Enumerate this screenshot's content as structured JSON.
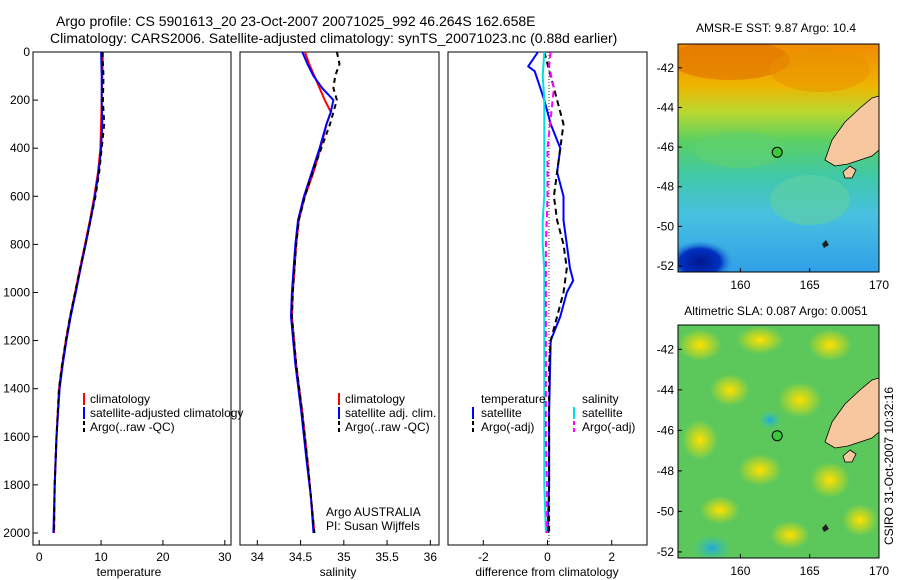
{
  "header": {
    "line1": "Argo profile: CS 5901613_20 23-Oct-2007 20071025_992 46.264S 162.658E",
    "line2": "Climatology: CARS2006. Satellite-adjusted climatology: synTS_20071023.nc (0.88d earlier)"
  },
  "credit_lines": [
    "Argo AUSTRALIA",
    "PI: Susan Wijffels"
  ],
  "side_stamp": "CSIRO 31-Oct-2007 10:32:16",
  "colors": {
    "climatology": "#ff0000",
    "satellite": "#0000ff",
    "argo": "#000000",
    "salinity_satellite": "#00e0e0",
    "salinity_argo": "#ff00ff",
    "land": "#f7c7a0"
  },
  "chart_data": [
    {
      "id": "temperature",
      "type": "line",
      "xlabel": "temperature",
      "xlim": [
        -1,
        31
      ],
      "ylim": [
        2050,
        0
      ],
      "xticks": [
        "0",
        "10",
        "20",
        "30"
      ],
      "yticks": [
        "0",
        "200",
        "400",
        "600",
        "800",
        "1000",
        "1200",
        "1400",
        "1600",
        "1800",
        "2000"
      ],
      "legend": [
        "climatology",
        "satellite-adjusted climatology",
        "Argo(..raw -QC)"
      ],
      "series": [
        {
          "name": "climatology",
          "color": "#ff0000",
          "dash": "",
          "x": [
            10.3,
            10.2,
            10.1,
            10.0,
            9.9,
            9.5,
            8.9,
            8.2,
            7.4,
            6.6,
            5.8,
            5.0,
            4.3,
            3.7,
            3.2,
            2.8,
            2.5,
            2.4
          ],
          "y": [
            0,
            100,
            200,
            300,
            400,
            500,
            600,
            700,
            800,
            900,
            1000,
            1100,
            1200,
            1300,
            1400,
            1600,
            1800,
            2000
          ]
        },
        {
          "name": "satellite-adjusted climatology",
          "color": "#0000ff",
          "dash": "",
          "x": [
            10.0,
            10.1,
            10.1,
            10.2,
            10.0,
            9.6,
            9.0,
            8.3,
            7.5,
            6.7,
            5.9,
            5.1,
            4.4,
            3.8,
            3.3,
            2.8,
            2.5,
            2.3
          ],
          "y": [
            0,
            100,
            200,
            300,
            400,
            500,
            600,
            700,
            800,
            900,
            1000,
            1100,
            1200,
            1300,
            1400,
            1600,
            1800,
            2000
          ]
        },
        {
          "name": "Argo(..raw -QC)",
          "color": "#000000",
          "dash": "5,4",
          "x": [
            10.2,
            10.4,
            10.3,
            10.5,
            10.1,
            9.7,
            9.1,
            8.3,
            7.5,
            6.6,
            5.8,
            5.0,
            4.3,
            3.7,
            3.2,
            2.8,
            2.5,
            2.4
          ],
          "y": [
            0,
            100,
            200,
            300,
            400,
            500,
            600,
            700,
            800,
            900,
            1000,
            1100,
            1200,
            1300,
            1400,
            1600,
            1800,
            2000
          ]
        }
      ]
    },
    {
      "id": "salinity",
      "type": "line",
      "xlabel": "salinity",
      "xlim": [
        33.8,
        36.1
      ],
      "ylim": [
        2050,
        0
      ],
      "xticks": [
        "34",
        "34.5",
        "35",
        "35.5",
        "36"
      ],
      "yticks": [],
      "legend": [
        "climatology",
        "satellite adj. clim.",
        "Argo(..raw -QC)"
      ],
      "series": [
        {
          "name": "climatology",
          "color": "#ff0000",
          "dash": "",
          "x": [
            34.55,
            34.6,
            34.66,
            34.72,
            34.78,
            34.85,
            34.8,
            34.73,
            34.65,
            34.55,
            34.48,
            34.45,
            34.43,
            34.41,
            34.4,
            34.45,
            34.52,
            34.58,
            34.62,
            34.66
          ],
          "y": [
            0,
            50,
            100,
            150,
            200,
            250,
            300,
            400,
            500,
            600,
            700,
            800,
            900,
            1000,
            1100,
            1300,
            1500,
            1700,
            1850,
            2000
          ]
        },
        {
          "name": "satellite adj. clim.",
          "color": "#0000ff",
          "dash": "",
          "x": [
            34.52,
            34.58,
            34.65,
            34.75,
            34.88,
            34.85,
            34.8,
            34.72,
            34.63,
            34.54,
            34.47,
            34.44,
            34.42,
            34.4,
            34.39,
            34.44,
            34.51,
            34.57,
            34.62,
            34.65
          ],
          "y": [
            0,
            50,
            100,
            150,
            200,
            250,
            300,
            400,
            500,
            600,
            700,
            800,
            900,
            1000,
            1100,
            1300,
            1500,
            1700,
            1850,
            2000
          ]
        },
        {
          "name": "Argo(..raw -QC)",
          "color": "#000000",
          "dash": "5,4",
          "x": [
            34.92,
            34.95,
            34.9,
            34.88,
            34.92,
            34.88,
            34.84,
            34.74,
            34.64,
            34.55,
            34.48,
            34.45,
            34.43,
            34.41,
            34.4,
            34.45,
            34.52,
            34.58,
            34.62,
            34.66
          ],
          "y": [
            0,
            50,
            100,
            150,
            200,
            250,
            300,
            400,
            500,
            600,
            700,
            800,
            900,
            1000,
            1100,
            1300,
            1500,
            1700,
            1850,
            2000
          ]
        }
      ]
    },
    {
      "id": "difference",
      "type": "line",
      "xlabel": "difference from climatology",
      "xlim": [
        -3.1,
        3.1
      ],
      "ylim": [
        2050,
        0
      ],
      "xticks": [
        "-2",
        "0",
        "2"
      ],
      "yticks": [],
      "legend_headers": [
        "temperature",
        "salinity"
      ],
      "legend": [
        "satellite",
        "Argo(-adj)",
        "satellite",
        "Argo(-adj)"
      ],
      "series": [
        {
          "name": "temperature satellite",
          "color": "#0000ff",
          "dash": "",
          "x": [
            -0.3,
            -0.6,
            -0.4,
            -0.1,
            0.1,
            0.4,
            0.3,
            0.5,
            0.5,
            0.6,
            0.7,
            0.8,
            0.6,
            0.4,
            0.1,
            0.05,
            0.05,
            0.0
          ],
          "y": [
            0,
            60,
            80,
            200,
            300,
            400,
            500,
            600,
            700,
            800,
            900,
            950,
            1000,
            1100,
            1200,
            1500,
            1800,
            2000
          ]
        },
        {
          "name": "temperature Argo(-adj)",
          "color": "#000000",
          "dash": "6,4",
          "x": [
            -0.1,
            0.1,
            0.3,
            0.5,
            0.4,
            0.3,
            0.2,
            0.3,
            0.5,
            0.6,
            0.5,
            0.3,
            0.1,
            0.05,
            0.05,
            0.05,
            0.05,
            0.05
          ],
          "y": [
            0,
            100,
            200,
            300,
            400,
            500,
            600,
            700,
            800,
            900,
            1000,
            1100,
            1200,
            1300,
            1500,
            1700,
            1900,
            2000
          ]
        },
        {
          "name": "salinity satellite",
          "color": "#00e0e0",
          "dash": "",
          "x": [
            -0.1,
            -0.15,
            -0.1,
            -0.1,
            -0.1,
            -0.1,
            -0.1,
            -0.15,
            -0.15,
            -0.1,
            -0.1,
            -0.1,
            -0.1,
            -0.1,
            -0.1,
            -0.05
          ],
          "y": [
            0,
            100,
            200,
            300,
            400,
            500,
            600,
            700,
            800,
            900,
            1000,
            1200,
            1400,
            1600,
            1800,
            2000
          ]
        },
        {
          "name": "salinity Argo(-adj)",
          "color": "#ff00ff",
          "dash": "6,4",
          "x": [
            0.1,
            0.05,
            0.2,
            0.0,
            0.0,
            -0.05,
            -0.05,
            -0.05,
            -0.05,
            -0.05,
            -0.02,
            -0.02
          ],
          "y": [
            0,
            60,
            150,
            400,
            600,
            800,
            1000,
            1200,
            1400,
            1600,
            1800,
            2000
          ]
        }
      ]
    },
    {
      "id": "sst_map",
      "type": "heatmap",
      "title": "AMSR-E SST: 9.87 Argo: 10.4",
      "xlim": [
        155.5,
        170
      ],
      "ylim": [
        -52.3,
        -40.8
      ],
      "xticks": [
        "160",
        "165",
        "170"
      ],
      "yticks": [
        "-42",
        "-44",
        "-46",
        "-48",
        "-50",
        "-52"
      ],
      "profile_lon": 162.658,
      "profile_lat": -46.264
    },
    {
      "id": "sla_map",
      "type": "heatmap",
      "title": "Altimetric SLA: 0.087 Argo: 0.0051",
      "xlim": [
        155.5,
        170
      ],
      "ylim": [
        -52.3,
        -40.8
      ],
      "xticks": [
        "160",
        "165",
        "170"
      ],
      "yticks": [
        "-42",
        "-44",
        "-46",
        "-48",
        "-50",
        "-52"
      ],
      "profile_lon": 162.658,
      "profile_lat": -46.264
    }
  ]
}
